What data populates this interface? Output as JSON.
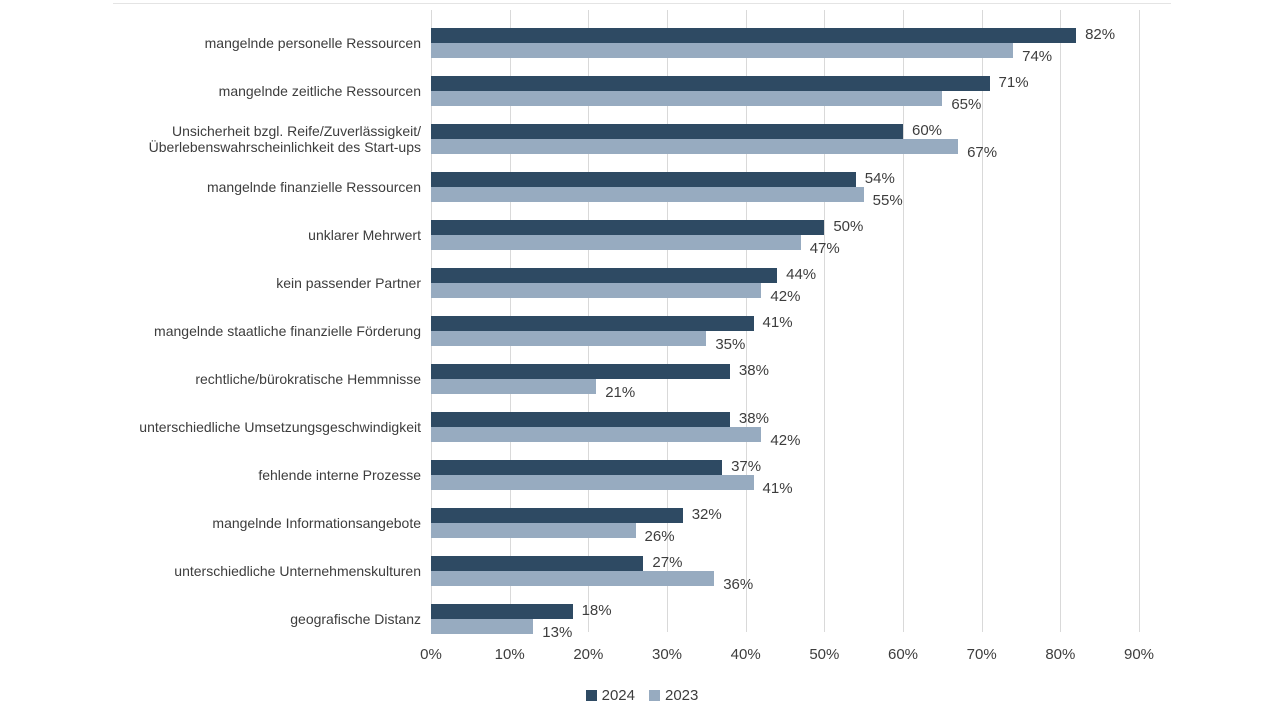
{
  "page": {
    "background": "#ffffff",
    "text_color": "#3d3d3d",
    "top_border_color": "#e4e4e4"
  },
  "chart_data": {
    "type": "bar",
    "orientation": "horizontal",
    "title": "",
    "categories": [
      "mangelnde personelle Ressourcen",
      "mangelnde zeitliche Ressourcen",
      "Unsicherheit bzgl. Reife/Zuverlässigkeit/\nÜberlebenswahrscheinlichkeit des Start-ups",
      "mangelnde finanzielle Ressourcen",
      "unklarer Mehrwert",
      "kein passender Partner",
      "mangelnde staatliche finanzielle Förderung",
      "rechtliche/bürokratische Hemmnisse",
      "unterschiedliche Umsetzungsgeschwindigkeit",
      "fehlende interne Prozesse",
      "mangelnde Informationsangebote",
      "unterschiedliche Unternehmenskulturen",
      "geografische Distanz"
    ],
    "series": [
      {
        "name": "2024",
        "color": "#2E4A63",
        "values": [
          82,
          71,
          60,
          54,
          50,
          44,
          41,
          38,
          38,
          37,
          32,
          27,
          18
        ]
      },
      {
        "name": "2023",
        "color": "#97ABC0",
        "values": [
          74,
          65,
          67,
          55,
          47,
          42,
          35,
          21,
          42,
          41,
          26,
          36,
          13
        ]
      }
    ],
    "xlim": [
      0,
      90
    ],
    "x_ticks": [
      "0%",
      "10%",
      "20%",
      "30%",
      "40%",
      "50%",
      "60%",
      "70%",
      "80%",
      "90%"
    ],
    "value_label_suffix": "%",
    "grid": "vertical",
    "gridline_color": "#d9d9d9",
    "legend_position": "bottom-center"
  }
}
